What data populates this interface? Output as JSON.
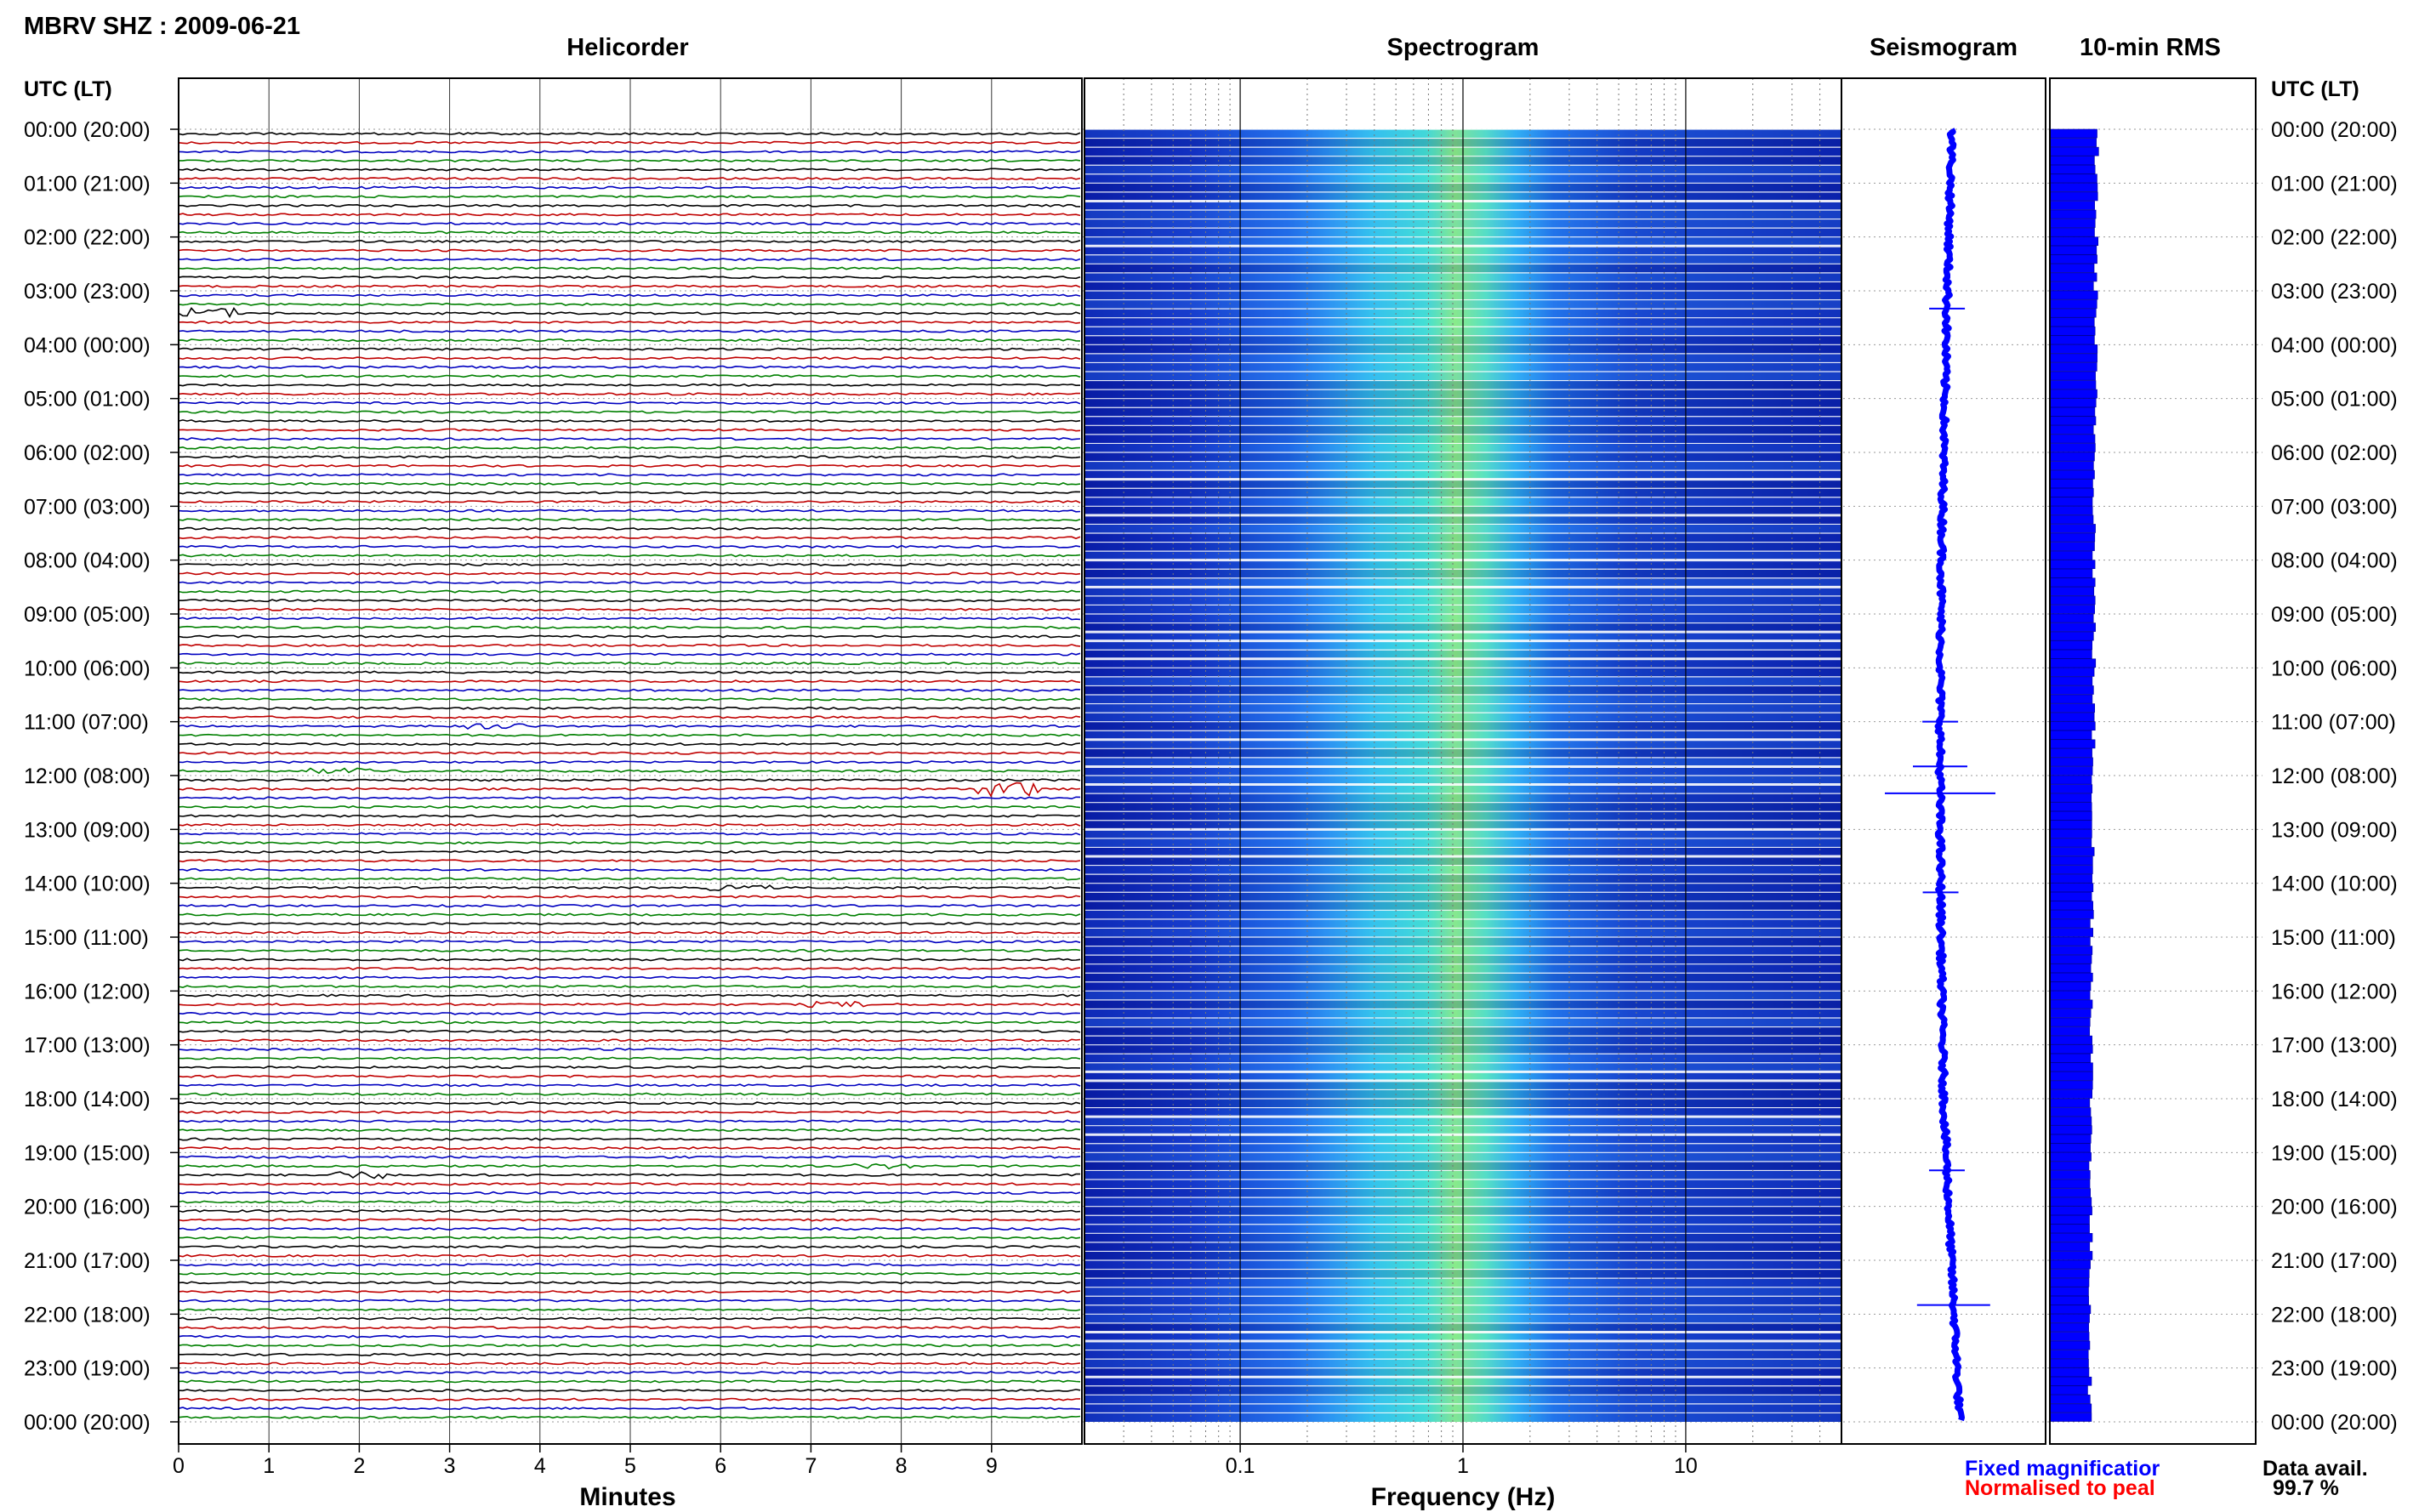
{
  "header": {
    "station_title": "MBRV SHZ : 2009-06-21",
    "panel_titles": {
      "helicorder": "Helicorder",
      "spectrogram": "Spectrogram",
      "seismogram": "Seismogram",
      "rms": "10-min RMS"
    },
    "time_axis_label_left": "UTC (LT)",
    "time_axis_label_right": "UTC (LT)"
  },
  "chart_data": {
    "type": "heatmap",
    "title": "MBRV SHZ : 2009-06-21",
    "time_rows": [
      "00:00 (20:00)",
      "01:00 (21:00)",
      "02:00 (22:00)",
      "03:00 (23:00)",
      "04:00 (00:00)",
      "05:00 (01:00)",
      "06:00 (02:00)",
      "07:00 (03:00)",
      "08:00 (04:00)",
      "09:00 (05:00)",
      "10:00 (06:00)",
      "11:00 (07:00)",
      "12:00 (08:00)",
      "13:00 (09:00)",
      "14:00 (10:00)",
      "15:00 (11:00)",
      "16:00 (12:00)",
      "17:00 (13:00)",
      "18:00 (14:00)",
      "19:00 (15:00)",
      "20:00 (16:00)",
      "21:00 (17:00)",
      "22:00 (18:00)",
      "23:00 (19:00)",
      "00:00 (20:00)"
    ],
    "helicorder": {
      "xlabel": "Minutes",
      "xticks": [
        "0",
        "1",
        "2",
        "3",
        "4",
        "5",
        "6",
        "7",
        "8",
        "9"
      ],
      "xlim": [
        0,
        10
      ],
      "trace_colors": [
        "#000000",
        "#c00000",
        "#0000c0",
        "#008000"
      ],
      "traces_per_hour": 6,
      "events": [
        {
          "hour": 3.33,
          "minute": 0.3,
          "amplitude": 3
        },
        {
          "hour": 11.0,
          "minute": 3.5,
          "amplitude": 1.5
        },
        {
          "hour": 11.83,
          "minute": 1.8,
          "amplitude": 1.5
        },
        {
          "hour": 12.17,
          "minute": 9.2,
          "amplitude": 4
        },
        {
          "hour": 14.0,
          "minute": 6.2,
          "amplitude": 1.5
        },
        {
          "hour": 16.17,
          "minute": 7.3,
          "amplitude": 1.5
        },
        {
          "hour": 19.33,
          "minute": 2.0,
          "amplitude": 2
        },
        {
          "hour": 19.17,
          "minute": 7.8,
          "amplitude": 1.5
        }
      ]
    },
    "spectrogram": {
      "xlabel": "Frequency (Hz)",
      "xscale": "log",
      "xlim": [
        0.02,
        50
      ],
      "xticks": [
        "0.1",
        "1",
        "10"
      ],
      "peak_band_hz": [
        0.3,
        2.0
      ],
      "colors": [
        "#0a1ca8",
        "#1f5ce8",
        "#2ba4f0",
        "#39e0d8",
        "#9ef07a"
      ]
    },
    "seismogram": {
      "color": "#0000ff",
      "events": [
        {
          "hour": 3.33,
          "amplitude": 1
        },
        {
          "hour": 11.0,
          "amplitude": 1
        },
        {
          "hour": 11.83,
          "amplitude": 2
        },
        {
          "hour": 12.33,
          "amplitude": 5
        },
        {
          "hour": 14.17,
          "amplitude": 1
        },
        {
          "hour": 19.33,
          "amplitude": 1
        },
        {
          "hour": 21.83,
          "amplitude": 3
        }
      ]
    },
    "rms": {
      "color": "#0000ff",
      "bar_level_first_hour": 1.0,
      "bar_level_end": 0.85
    }
  },
  "legend": {
    "fixed": "Fixed magnificatior",
    "normalised": "Normalised to peal",
    "fixed_color": "#0000ff",
    "normalised_color": "#ff0000",
    "data_avail_label": "Data avail.",
    "data_avail_value": "99.7 %"
  }
}
